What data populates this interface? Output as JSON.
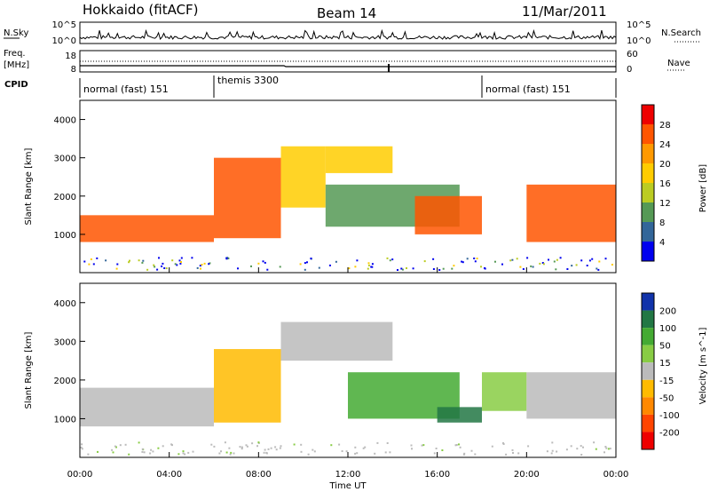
{
  "header": {
    "station": "Hokkaido (fitACF)",
    "beam": "Beam 14",
    "date": "11/Mar/2011"
  },
  "top_panel": {
    "left_label": "N.Sky",
    "right_label": "N.Search",
    "left_ticks": [
      "10^5",
      "10^0"
    ],
    "right_ticks": [
      "10^5",
      "10^0"
    ]
  },
  "freq_panel": {
    "left_label_1": "Freq.",
    "left_label_2": "[MHz]",
    "right_label": "Nave",
    "left_ticks": [
      "18",
      "8"
    ],
    "right_ticks": [
      "60",
      "0"
    ]
  },
  "cpid": {
    "label": "CPID",
    "segments": [
      {
        "label": "normal (fast) 151",
        "start": 0,
        "end": 6
      },
      {
        "label": "themis 3300",
        "start": 6,
        "end": 18
      },
      {
        "label": "normal (fast) 151",
        "start": 18,
        "end": 24
      }
    ]
  },
  "power_colorbar": {
    "label": "Power [dB]",
    "ticks": [
      "28",
      "24",
      "20",
      "16",
      "12",
      "8",
      "4"
    ],
    "colors": [
      "#ee0000",
      "#ff5500",
      "#ff9900",
      "#ffcc00",
      "#bbcc22",
      "#559955",
      "#336699",
      "#0000ee"
    ]
  },
  "velocity_colorbar": {
    "label": "Velocity [m s^-1]",
    "ticks": [
      "200",
      "100",
      "50",
      "15",
      "-15",
      "-50",
      "-100",
      "-200"
    ],
    "colors": [
      "#1133aa",
      "#227744",
      "#44aa33",
      "#88cc44",
      "#bbbbbb",
      "#ffbb00",
      "#ff8800",
      "#ff4400",
      "#ee0000"
    ]
  },
  "chart_data": [
    {
      "type": "heatmap",
      "title": "",
      "xlabel": "Time UT",
      "ylabel": "Slant Range [km]",
      "xlim": [
        0,
        24
      ],
      "ylim": [
        0,
        4500
      ],
      "x_ticks": [
        "00:00",
        "04:00",
        "08:00",
        "12:00",
        "16:00",
        "20:00",
        "00:00"
      ],
      "y_ticks": [
        "1000",
        "2000",
        "3000",
        "4000"
      ],
      "colorbar": "Power [dB]",
      "regions": [
        {
          "x": [
            0,
            6
          ],
          "y": [
            800,
            1500
          ],
          "value": 28
        },
        {
          "x": [
            6,
            9
          ],
          "y": [
            900,
            3000
          ],
          "value": 26
        },
        {
          "x": [
            9,
            11
          ],
          "y": [
            1700,
            3300
          ],
          "value": 20
        },
        {
          "x": [
            11,
            14
          ],
          "y": [
            2600,
            3300
          ],
          "value": 18
        },
        {
          "x": [
            11,
            17
          ],
          "y": [
            1200,
            2300
          ],
          "value": 12
        },
        {
          "x": [
            15,
            18
          ],
          "y": [
            1000,
            2000
          ],
          "value": 26
        },
        {
          "x": [
            20,
            24
          ],
          "y": [
            800,
            2300
          ],
          "value": 28
        }
      ]
    },
    {
      "type": "heatmap",
      "title": "",
      "xlabel": "Time UT",
      "ylabel": "Slant Range [km]",
      "xlim": [
        0,
        24
      ],
      "ylim": [
        0,
        4500
      ],
      "x_ticks": [
        "00:00",
        "04:00",
        "08:00",
        "12:00",
        "16:00",
        "20:00",
        "00:00"
      ],
      "y_ticks": [
        "1000",
        "2000",
        "3000",
        "4000"
      ],
      "colorbar": "Velocity [m s^-1]",
      "regions": [
        {
          "x": [
            0,
            6
          ],
          "y": [
            800,
            1800
          ],
          "value": 0
        },
        {
          "x": [
            6,
            9
          ],
          "y": [
            900,
            2800
          ],
          "value": -40
        },
        {
          "x": [
            9,
            14
          ],
          "y": [
            2500,
            3500
          ],
          "value": 0
        },
        {
          "x": [
            12,
            17
          ],
          "y": [
            1000,
            2200
          ],
          "value": 60
        },
        {
          "x": [
            16,
            18
          ],
          "y": [
            900,
            1300
          ],
          "value": 150
        },
        {
          "x": [
            18,
            20
          ],
          "y": [
            1200,
            2200
          ],
          "value": 40
        },
        {
          "x": [
            20,
            24
          ],
          "y": [
            1000,
            2200
          ],
          "value": 0
        }
      ]
    }
  ]
}
